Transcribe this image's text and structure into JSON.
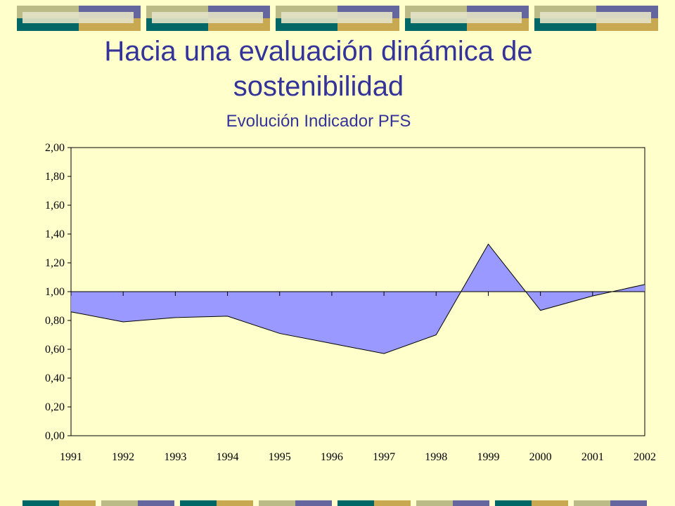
{
  "slide": {
    "title_line1": "Hacia una evaluación dinámica de",
    "title_line2": "sostenibilidad",
    "subtitle": "Evolución Indicador PFS"
  },
  "colors": {
    "background": "#FFFFCC",
    "title": "#333399",
    "area_fill": "#9999FF",
    "tile_olive": "#BBBB88",
    "tile_blue": "#66669E",
    "tile_teal": "#006666",
    "tile_gold": "#C8A850"
  },
  "chart_data": {
    "type": "area",
    "title": "",
    "xlabel": "",
    "ylabel": "",
    "baseline": 1.0,
    "x": [
      "1991",
      "1992",
      "1993",
      "1994",
      "1995",
      "1996",
      "1997",
      "1998",
      "1999",
      "2000",
      "2001",
      "2002"
    ],
    "series": [
      {
        "values": [
          0.86,
          0.79,
          0.82,
          0.83,
          0.71,
          0.64,
          0.57,
          0.7,
          1.33,
          0.87,
          0.97,
          1.05
        ]
      }
    ],
    "yticks": [
      "0,00",
      "0,20",
      "0,40",
      "0,60",
      "0,80",
      "1,00",
      "1,20",
      "1,40",
      "1,60",
      "1,80",
      "2,00"
    ],
    "ylim": [
      0,
      2
    ],
    "grid": false,
    "legend": "none"
  }
}
